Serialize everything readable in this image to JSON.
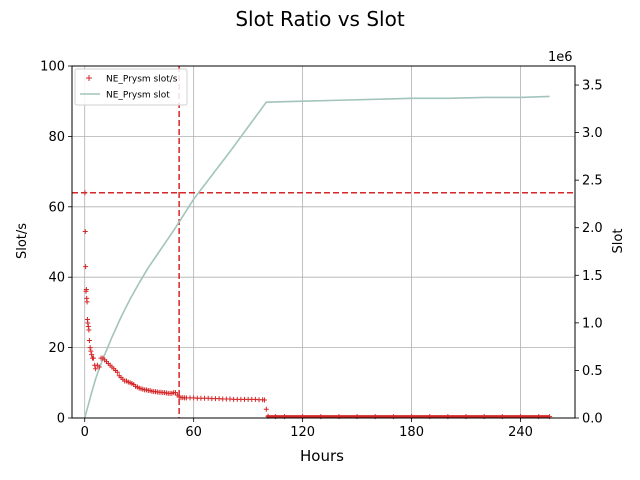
{
  "chart_data": {
    "type": "scatter",
    "title": "Slot Ratio vs Slot",
    "xlabel": "Hours",
    "ylabel_left": "Slot/s",
    "ylabel_right": "Slot",
    "right_axis_offset_label": "1e6",
    "xlim": [
      -7,
      270
    ],
    "ylim_left": [
      0,
      100
    ],
    "ylim_right": [
      0,
      3.7
    ],
    "x_ticks": [
      0,
      60,
      120,
      180,
      240
    ],
    "y_left_ticks": [
      0,
      20,
      40,
      60,
      80,
      100
    ],
    "y_right_ticks": [
      0.0,
      0.5,
      1.0,
      1.5,
      2.0,
      2.5,
      3.0,
      3.5
    ],
    "grid": true,
    "legend_position": "top-left",
    "legend": [
      {
        "label": "NE_Prysm slot/s",
        "marker": "+",
        "color": "#d62728"
      },
      {
        "label": "NE_Prysm slot",
        "marker": "line",
        "color": "#a2c4bc"
      }
    ],
    "reference_lines": [
      {
        "orientation": "vertical",
        "x": 52,
        "color": "#d62728",
        "style": "dashed"
      },
      {
        "orientation": "horizontal",
        "y": 64,
        "color": "#d62728",
        "style": "dashed"
      }
    ],
    "series": [
      {
        "name": "NE_Prysm slot/s",
        "axis": "left",
        "style": "markers",
        "color": "#d62728",
        "x": [
          0.1,
          0.3,
          0.5,
          0.7,
          0.9,
          1.1,
          1.3,
          1.5,
          1.7,
          2,
          2.3,
          2.6,
          3,
          3.4,
          3.8,
          4.3,
          4.8,
          5.5,
          6,
          7,
          8,
          9,
          10,
          11,
          12,
          13,
          14,
          15,
          16,
          17,
          18,
          19,
          20,
          21,
          22,
          23,
          24,
          25,
          26,
          27,
          28,
          29,
          30,
          31,
          32,
          33,
          34,
          35,
          36,
          37,
          38,
          39,
          40,
          41,
          42,
          43,
          44,
          45,
          46,
          47,
          48,
          49,
          50,
          51,
          52,
          53,
          54,
          55,
          56,
          58,
          60,
          62,
          64,
          66,
          68,
          70,
          72,
          74,
          76,
          78,
          80,
          82,
          84,
          86,
          88,
          90,
          92,
          94,
          96,
          98,
          99,
          100,
          101,
          105,
          110,
          120,
          130,
          140,
          150,
          160,
          170,
          180,
          190,
          200,
          210,
          220,
          230,
          240,
          250,
          256
        ],
        "y": [
          64,
          53,
          43,
          36,
          36.5,
          34,
          33,
          28,
          27,
          26,
          25,
          22,
          20,
          19,
          18,
          17,
          17,
          15,
          14,
          15,
          14.5,
          17,
          17,
          16.5,
          16,
          15.5,
          15,
          14.5,
          14,
          13.5,
          13,
          12,
          11.5,
          11,
          10.5,
          10.5,
          10.2,
          10,
          9.8,
          9.5,
          9,
          8.8,
          8.5,
          8.3,
          8.2,
          8,
          8,
          7.8,
          7.8,
          7.6,
          7.5,
          7.5,
          7.4,
          7.3,
          7.3,
          7.2,
          7.2,
          7.1,
          7,
          7,
          7,
          7.2,
          7.2,
          6.5,
          6,
          5.8,
          5.8,
          5.7,
          5.7,
          5.7,
          5.7,
          5.6,
          5.6,
          5.6,
          5.6,
          5.5,
          5.5,
          5.5,
          5.4,
          5.4,
          5.4,
          5.3,
          5.3,
          5.3,
          5.3,
          5.3,
          5.3,
          5.3,
          5.2,
          5.2,
          5.1,
          2.5,
          0.5,
          0.4,
          0.4,
          0.4,
          0.4,
          0.4,
          0.4,
          0.4,
          0.4,
          0.4,
          0.4,
          0.4,
          0.4,
          0.4,
          0.4,
          0.4,
          0.4,
          0.4
        ]
      },
      {
        "name": "NE_Prysm slot",
        "axis": "right",
        "style": "line",
        "color": "#a2c4bc",
        "x": [
          0,
          1,
          2,
          4,
          6,
          8,
          10,
          15,
          20,
          25,
          30,
          35,
          40,
          45,
          50,
          55,
          60,
          70,
          80,
          90,
          100,
          120,
          140,
          160,
          180,
          200,
          220,
          240,
          256
        ],
        "y": [
          0,
          0.07,
          0.14,
          0.28,
          0.41,
          0.52,
          0.62,
          0.85,
          1.06,
          1.25,
          1.42,
          1.58,
          1.72,
          1.86,
          2.0,
          2.15,
          2.3,
          2.55,
          2.8,
          3.06,
          3.32,
          3.33,
          3.34,
          3.35,
          3.36,
          3.36,
          3.37,
          3.37,
          3.38
        ]
      }
    ]
  }
}
